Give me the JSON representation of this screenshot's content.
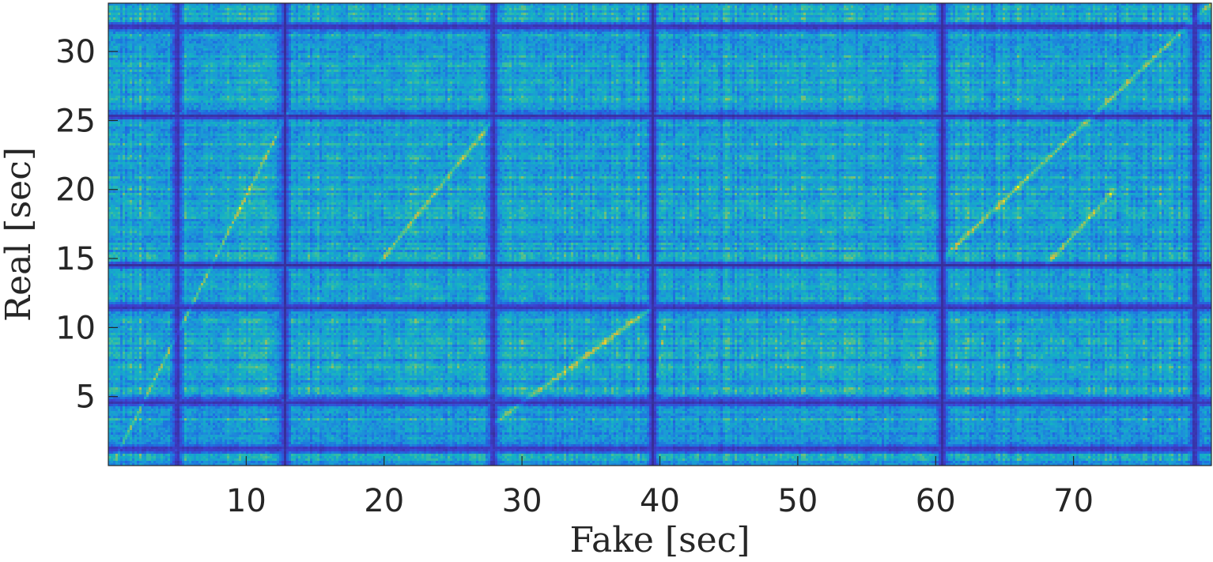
{
  "chart_data": {
    "type": "heatmap",
    "title": "",
    "xlabel": "Fake [sec]",
    "ylabel": "Real [sec]",
    "xlim": [
      0,
      80
    ],
    "ylim": [
      0,
      33.5
    ],
    "xticks": [
      10,
      20,
      30,
      40,
      50,
      60,
      70
    ],
    "xtick_labels": [
      "10",
      "20",
      "30",
      "40",
      "50",
      "60",
      "70"
    ],
    "yticks": [
      5,
      10,
      15,
      20,
      25,
      30
    ],
    "ytick_labels": [
      "5",
      "10",
      "15",
      "20",
      "25",
      "30"
    ],
    "colormap": "parula",
    "value_range": [
      0,
      1
    ],
    "colormap_stops": [
      "#352a87",
      "#3e3fd0",
      "#1f6de0",
      "#1c96d8",
      "#14b1c4",
      "#3bbf9e",
      "#91c066",
      "#d6ba42",
      "#f9fb0e"
    ],
    "grid": false,
    "structure": {
      "low_similarity_bands_fake_sec": [
        5.0,
        12.8,
        27.9,
        39.5,
        60.5,
        78.8
      ],
      "low_similarity_bands_real_sec": [
        1.2,
        4.6,
        11.5,
        14.5,
        25.3,
        31.8
      ],
      "high_similarity_diagonals": [
        {
          "fake_start": 0.5,
          "real_start": 0.5,
          "fake_end": 13.0,
          "real_end": 25.5
        },
        {
          "fake_start": 19.5,
          "real_start": 14.5,
          "fake_end": 27.9,
          "real_end": 25.0
        },
        {
          "fake_start": 27.9,
          "real_start": 3.0,
          "fake_end": 39.5,
          "real_end": 11.5
        },
        {
          "fake_start": 39.5,
          "real_start": 4.5,
          "fake_end": 40.5,
          "real_end": 11.0
        },
        {
          "fake_start": 60.5,
          "real_start": 15.0,
          "fake_end": 80.0,
          "real_end": 33.5
        },
        {
          "fake_start": 68.0,
          "real_start": 14.5,
          "fake_end": 73.0,
          "real_end": 20.0
        }
      ]
    }
  }
}
